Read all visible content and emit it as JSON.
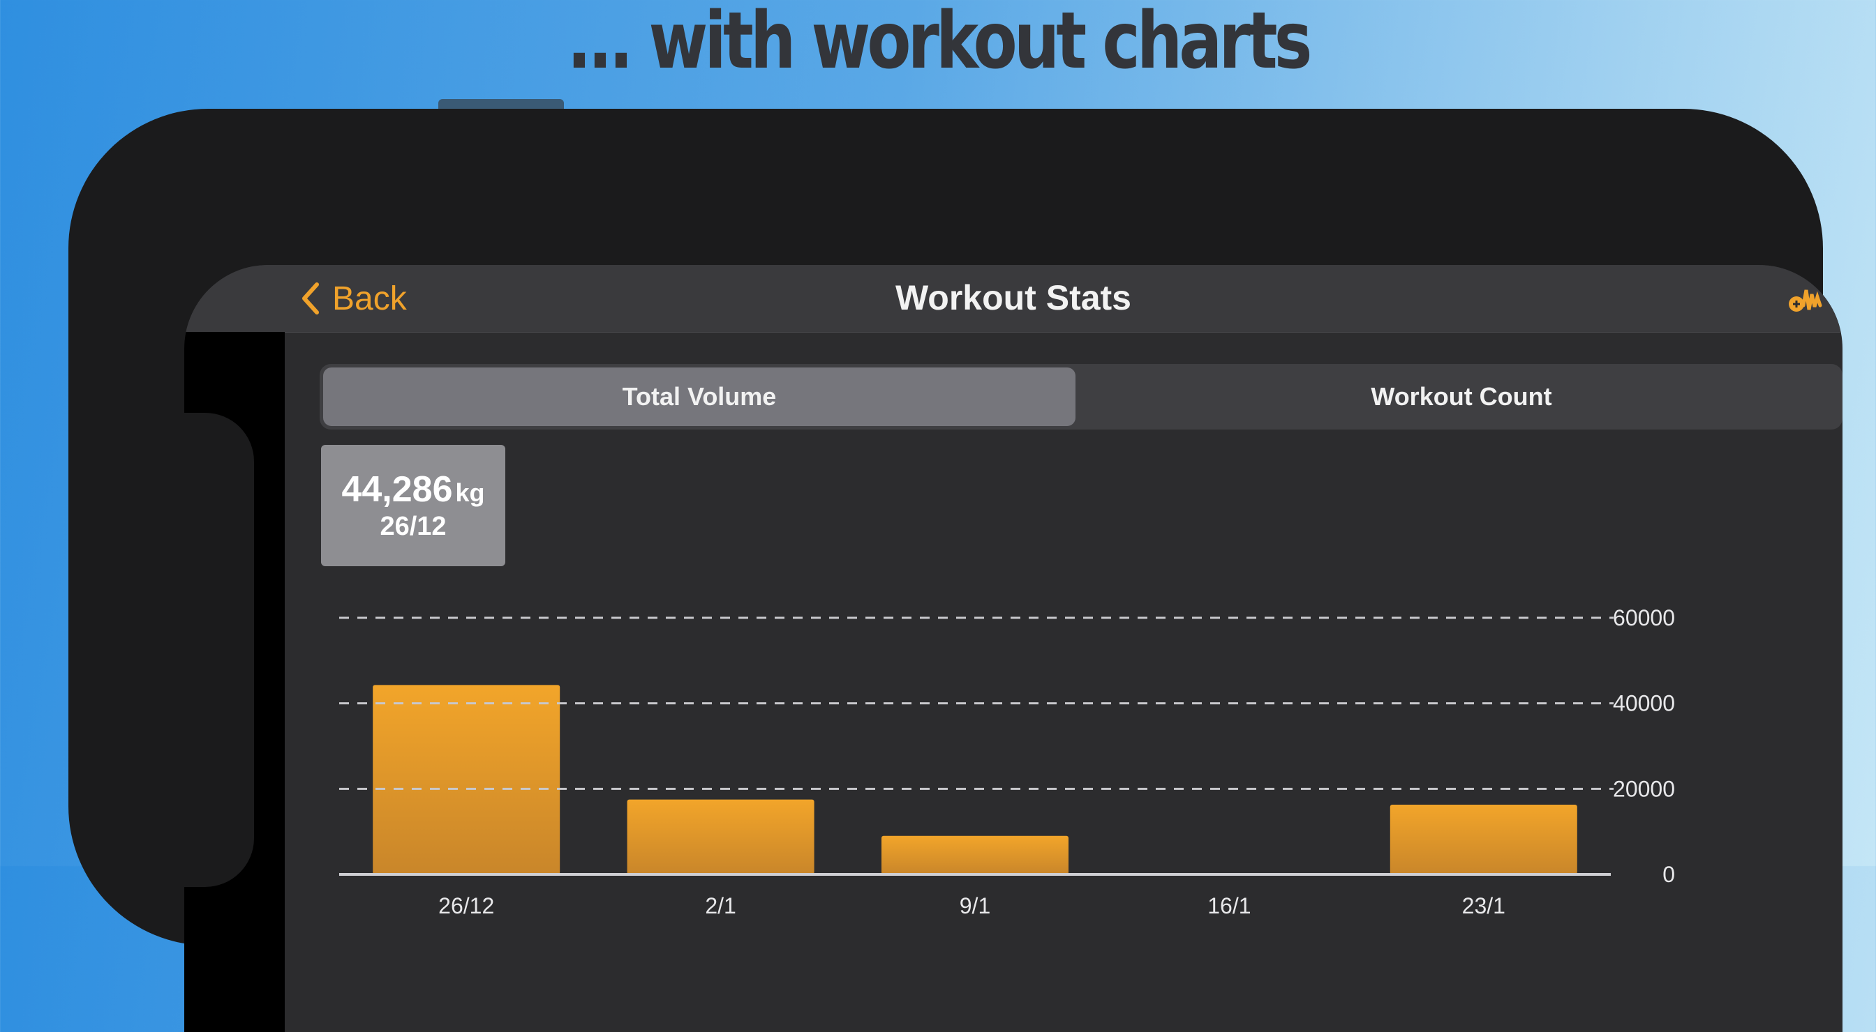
{
  "headline": "... with workout charts",
  "nav": {
    "back_label": "Back",
    "title": "Workout Stats",
    "accent": "#f0a22b"
  },
  "segments": {
    "selected": "Total Volume",
    "items": [
      "Total Volume",
      "Workout Count"
    ]
  },
  "tooltip": {
    "value": "44,286",
    "unit": "kg",
    "date": "26/12"
  },
  "chart_data": {
    "type": "bar",
    "title": "",
    "xlabel": "",
    "ylabel": "",
    "categories": [
      "26/12",
      "2/1",
      "9/1",
      "16/1",
      "23/1"
    ],
    "values": [
      44286,
      17500,
      9000,
      0,
      16300
    ],
    "ylim": [
      0,
      60000
    ],
    "yticks": [
      0,
      20000,
      40000,
      60000
    ],
    "grid": true,
    "bar_color": "#f0a22b"
  }
}
